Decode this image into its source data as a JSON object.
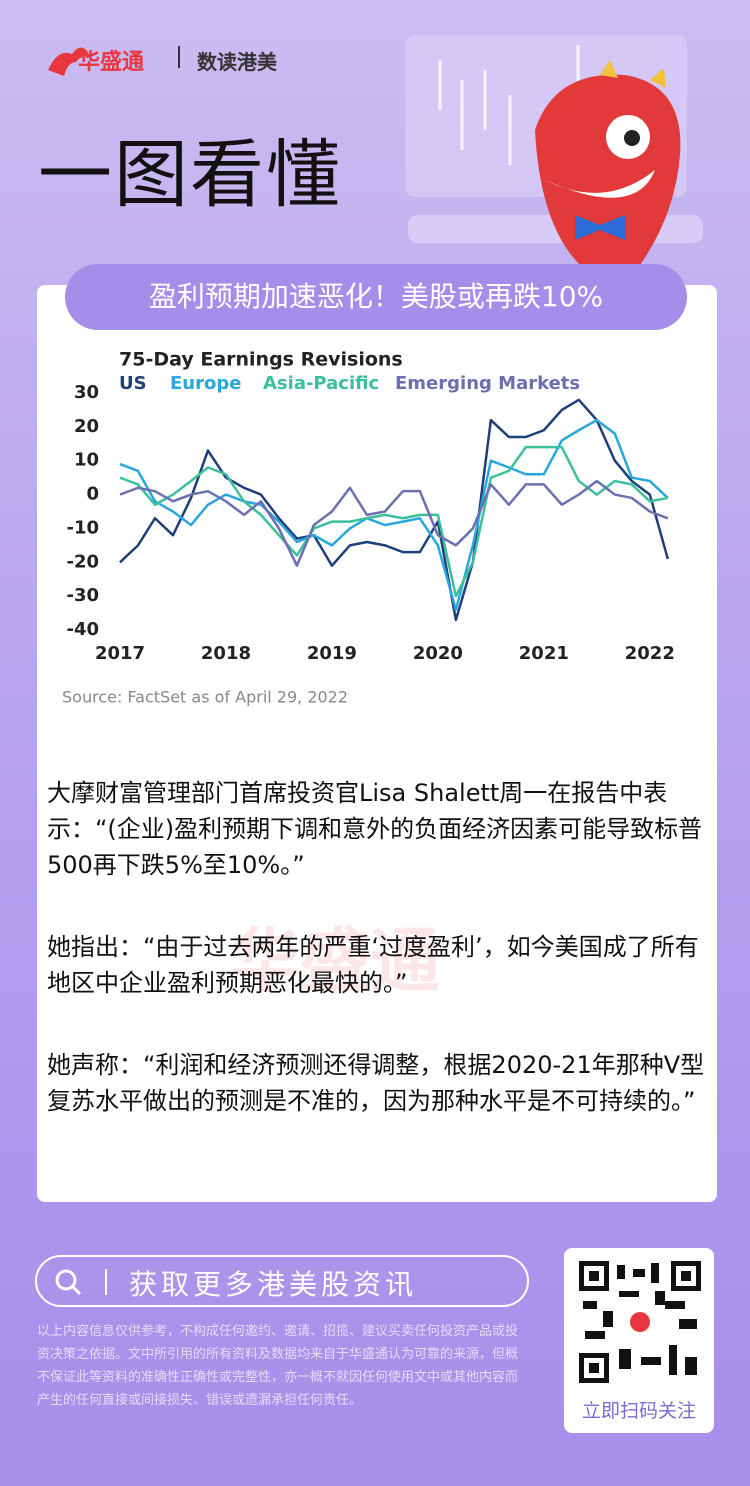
{
  "header": {
    "brand": "华盛通",
    "column": "数读港美",
    "title": "一图看懂"
  },
  "banner": "盈利预期加速恶化！美股或再跌10%",
  "chart_data": {
    "type": "line",
    "title": "75-Day Earnings Revisions",
    "source": "Source: FactSet as of April 29, 2022",
    "x": [
      2017,
      2017.17,
      2017.33,
      2017.5,
      2017.67,
      2017.83,
      2018,
      2018.17,
      2018.33,
      2018.5,
      2018.67,
      2018.83,
      2019,
      2019.17,
      2019.33,
      2019.5,
      2019.67,
      2019.83,
      2020,
      2020.17,
      2020.33,
      2020.5,
      2020.67,
      2020.83,
      2021,
      2021.17,
      2021.33,
      2021.5,
      2021.67,
      2021.83,
      2022,
      2022.17
    ],
    "series": [
      {
        "name": "US",
        "color": "#1f3f7a",
        "values": [
          -20,
          -15,
          -7,
          -12,
          -1,
          13,
          5,
          2,
          0,
          -7,
          -13,
          -12,
          -21,
          -15,
          -14,
          -15,
          -17,
          -17,
          -8,
          -37,
          -20,
          22,
          17,
          17,
          19,
          25,
          28,
          22,
          10,
          4,
          0,
          -19
        ]
      },
      {
        "name": "Europe",
        "color": "#2aa6df",
        "values": [
          9,
          7,
          -2,
          -5,
          -9,
          -3,
          0,
          -2,
          -3,
          -8,
          -14,
          -12,
          -15,
          -10,
          -7,
          -9,
          -8,
          -7,
          -15,
          -34,
          -15,
          10,
          8,
          6,
          6,
          16,
          19,
          22,
          18,
          5,
          4,
          -1
        ]
      },
      {
        "name": "Asia-Pacific",
        "color": "#3dbf9c",
        "values": [
          5,
          3,
          -3,
          0,
          4,
          8,
          6,
          -2,
          -6,
          -12,
          -18,
          -10,
          -8,
          -8,
          -7,
          -6,
          -7,
          -6,
          -6,
          -30,
          -20,
          5,
          7,
          14,
          14,
          14,
          4,
          0,
          4,
          3,
          -2,
          -1
        ]
      },
      {
        "name": "Emerging Markets",
        "color": "#6c6fb0",
        "values": [
          0,
          2,
          1,
          -2,
          0,
          1,
          -2,
          -6,
          -2,
          -10,
          -21,
          -9,
          -5,
          2,
          -6,
          -5,
          1,
          1,
          -12,
          -15,
          -10,
          3,
          -3,
          3,
          3,
          -3,
          0,
          4,
          0,
          -1,
          -5,
          -7
        ]
      }
    ],
    "xlim": [
      2017,
      2022.2
    ],
    "xticks": [
      2017,
      2018,
      2019,
      2020,
      2021,
      2022
    ],
    "ylim": [
      -40,
      30
    ],
    "yticks": [
      -40,
      -30,
      -20,
      -10,
      0,
      10,
      20,
      30
    ]
  },
  "paragraphs": [
    "大摩财富管理部门首席投资官Lisa Shalett周一在报告中表示：“(企业)盈利预期下调和意外的负面经济因素可能导致标普500再下跌5%至10%。”",
    "她指出：“由于过去两年的严重‘过度盈利’，如今美国成了所有地区中企业盈利预期恶化最快的。”",
    "她声称：“利润和经济预测还得调整，根据2020-21年那种V型复苏水平做出的预测是不准的，因为那种水平是不可持续的。”"
  ],
  "watermark": "华盛通",
  "footer": {
    "search": "获取更多港美股资讯",
    "qr_caption": "立即扫码关注",
    "disclaimer": "以上内容信息仅供参考，不构成任何邀约、邀请、招揽、建议买卖任何投资产品或投资决策之依据。文中所引用的所有资料及数据均来自于华盛通认为可靠的来源，但概不保证此等资料的准确性正确性或完整性，亦一概不就因任何使用文中或其他内容而产生的任何直接或间接损失、错误或遗漏承担任何责任。"
  }
}
